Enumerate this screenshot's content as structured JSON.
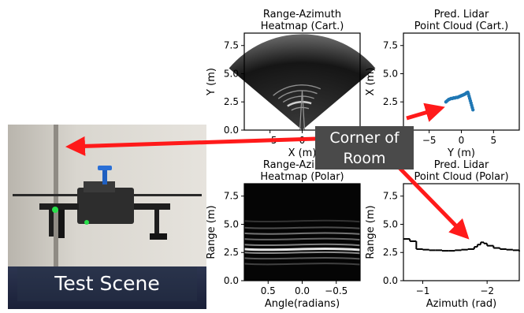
{
  "photo": {
    "label": "Test Scene"
  },
  "callout": {
    "line1": "Corner of",
    "line2": "Room"
  },
  "colors": {
    "arrow": "#ff1a1a",
    "scatter": "#1f77b4",
    "callout_bg": "#4a4a4a"
  },
  "chart_data": [
    {
      "id": "ra-cart",
      "type": "heatmap",
      "title": [
        "Range-Azimuth",
        "Heatmap (Cart.)"
      ],
      "xlabel": "X (m)",
      "ylabel": "Y (m)",
      "xlim": [
        -9,
        9
      ],
      "ylim": [
        0,
        8.6
      ],
      "xticks": [
        -5,
        0,
        5
      ],
      "xtick_labels": [
        "−5",
        "0",
        "5"
      ],
      "yticks": [
        0.0,
        2.5,
        5.0,
        7.5
      ],
      "ytick_labels": [
        "0.0",
        "2.5",
        "5.0",
        "7.5"
      ],
      "fov_range": 8.5,
      "fov_half_angle_rad": 0.87,
      "bright_arcs_range": [
        2.0,
        2.5,
        3.0,
        3.5,
        4.0
      ]
    },
    {
      "id": "lidar-cart",
      "type": "scatter",
      "title": [
        "Pred. Lidar",
        "Point Cloud (Cart.)"
      ],
      "xlabel": "Y (m)",
      "ylabel": "X (m)",
      "xlim": [
        -9,
        9
      ],
      "ylim": [
        0,
        8.6
      ],
      "xticks": [
        -5,
        0,
        5
      ],
      "xtick_labels": [
        "−5",
        "0",
        "5"
      ],
      "yticks": [
        0.0,
        2.5,
        5.0,
        7.5
      ],
      "ytick_labels": [
        "0.0",
        "2.5",
        "5.0",
        "7.5"
      ],
      "x": [
        -2.4,
        -2.2,
        -2.0,
        -1.8,
        -1.6,
        -1.4,
        -1.2,
        -1.0,
        -0.8,
        -0.6,
        -0.4,
        -0.2,
        0.0,
        0.2,
        0.4,
        0.6,
        0.8,
        1.0,
        1.1,
        1.2,
        1.3,
        1.4,
        1.5,
        1.6,
        1.7,
        1.8
      ],
      "y": [
        2.5,
        2.6,
        2.7,
        2.75,
        2.8,
        2.8,
        2.85,
        2.85,
        2.9,
        2.9,
        2.95,
        3.0,
        3.05,
        3.1,
        3.15,
        3.2,
        3.3,
        3.35,
        3.2,
        3.0,
        2.8,
        2.6,
        2.4,
        2.2,
        2.0,
        1.8
      ]
    },
    {
      "id": "ra-polar",
      "type": "heatmap",
      "title": [
        "Range-Azimuth",
        "Heatmap (Polar)"
      ],
      "xlabel": "Angle(radians)",
      "ylabel": "Range (m)",
      "xlim": [
        0.85,
        -0.85
      ],
      "ylim": [
        0,
        8.6
      ],
      "xticks": [
        0.5,
        0.0,
        -0.5
      ],
      "xtick_labels": [
        "0.5",
        "0.0",
        "−0.5"
      ],
      "yticks": [
        0.0,
        2.5,
        5.0,
        7.5
      ],
      "ytick_labels": [
        "0.0",
        "2.5",
        "5.0",
        "7.5"
      ],
      "bands": [
        {
          "range": 1.5,
          "intensity": 0.25
        },
        {
          "range": 2.0,
          "intensity": 0.35
        },
        {
          "range": 2.5,
          "intensity": 0.55
        },
        {
          "range": 2.8,
          "intensity": 0.9
        },
        {
          "range": 3.2,
          "intensity": 0.5
        },
        {
          "range": 3.7,
          "intensity": 0.4
        },
        {
          "range": 4.2,
          "intensity": 0.45
        },
        {
          "range": 4.7,
          "intensity": 0.3
        },
        {
          "range": 5.3,
          "intensity": 0.2
        }
      ]
    },
    {
      "id": "lidar-polar",
      "type": "line",
      "title": [
        "Pred. Lidar",
        "Point Cloud (Polar)"
      ],
      "xlabel": "Azimuth (rad)",
      "ylabel": "Range (m)",
      "xlim": [
        -0.7,
        -2.5
      ],
      "ylim": [
        0,
        8.6
      ],
      "xticks": [
        -1,
        -2
      ],
      "xtick_labels": [
        "−1",
        "−2"
      ],
      "yticks": [
        0.0,
        2.5,
        5.0,
        7.5
      ],
      "ytick_labels": [
        "0.0",
        "2.5",
        "5.0",
        "7.5"
      ],
      "x": [
        -0.7,
        -0.8,
        -0.9,
        -1.0,
        -1.1,
        -1.2,
        -1.3,
        -1.4,
        -1.5,
        -1.6,
        -1.7,
        -1.8,
        -1.85,
        -1.9,
        -1.95,
        -2.0,
        -2.1,
        -2.2,
        -2.3,
        -2.4,
        -2.5
      ],
      "y": [
        3.7,
        3.5,
        2.8,
        2.75,
        2.7,
        2.7,
        2.65,
        2.65,
        2.7,
        2.75,
        2.8,
        3.0,
        3.2,
        3.4,
        3.3,
        3.1,
        2.9,
        2.8,
        2.75,
        2.7,
        2.6
      ]
    }
  ]
}
